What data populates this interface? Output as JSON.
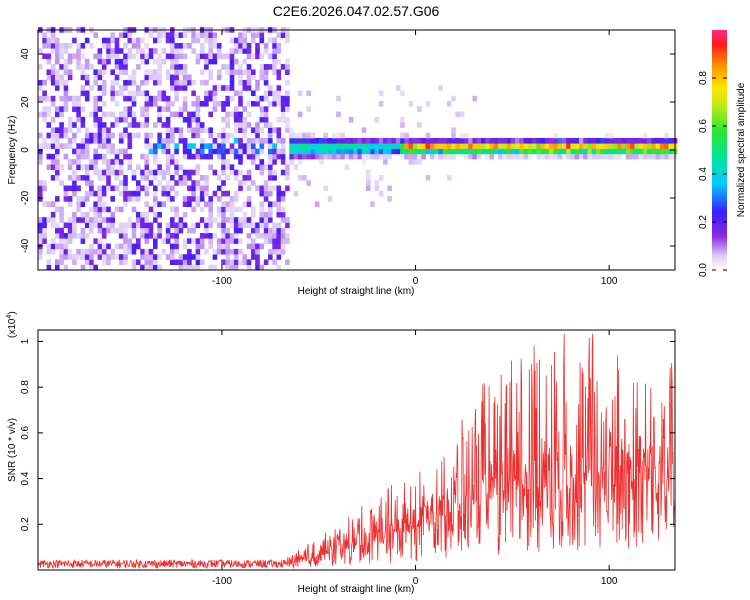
{
  "title": "C2E6.2026.047.02.57.G06",
  "chart_data": [
    {
      "type": "heatmap",
      "name": "spectrogram",
      "xlabel": "Height of straight line (km)",
      "ylabel": "Frequency (Hz)",
      "xlim": [
        -195,
        134
      ],
      "ylim": [
        -50,
        50
      ],
      "xticks": [
        -100,
        0,
        100
      ],
      "yticks": [
        -40,
        -20,
        0,
        20,
        40
      ],
      "colorbar": {
        "label": "Normalized spectral amplitude",
        "range": [
          0,
          1
        ],
        "ticks": [
          0.0,
          0.2,
          0.4,
          0.6,
          0.8
        ]
      },
      "features": [
        {
          "label": "broadband noise",
          "x_range": [
            -195,
            -66
          ],
          "freq_range": [
            -50,
            50
          ],
          "amplitude": 0.15
        },
        {
          "label": "emerging signal",
          "x_range": [
            -66,
            -10
          ],
          "center_hz": 0,
          "width_hz": 8,
          "amplitude": 0.4
        },
        {
          "label": "strong signal",
          "x_range": [
            -10,
            134
          ],
          "center_hz": 0,
          "width_hz": 5,
          "amplitude": 0.95
        }
      ]
    },
    {
      "type": "line",
      "name": "snr",
      "xlabel": "Height of straight line (km)",
      "ylabel": "SNR (10 * v/v)",
      "scale_label": "(x10",
      "scale_exp": "4",
      "scale_close": ")",
      "xlim": [
        -195,
        134
      ],
      "ylim": [
        0,
        1.05
      ],
      "xticks": [
        -100,
        0,
        100
      ],
      "yticks": [
        0.2,
        0.4,
        0.6,
        0.8,
        1.0
      ],
      "color": "#ef2f2f",
      "series_profile": [
        {
          "x": -195,
          "baseline": 0.03,
          "peak": 0.05
        },
        {
          "x": -66,
          "baseline": 0.03,
          "peak": 0.06
        },
        {
          "x": -40,
          "baseline": 0.08,
          "peak": 0.2
        },
        {
          "x": -10,
          "baseline": 0.15,
          "peak": 0.4
        },
        {
          "x": 20,
          "baseline": 0.25,
          "peak": 0.6
        },
        {
          "x": 50,
          "baseline": 0.35,
          "peak": 1.05
        },
        {
          "x": 100,
          "baseline": 0.35,
          "peak": 1.05
        },
        {
          "x": 134,
          "baseline": 0.38,
          "peak": 0.9
        }
      ]
    }
  ]
}
